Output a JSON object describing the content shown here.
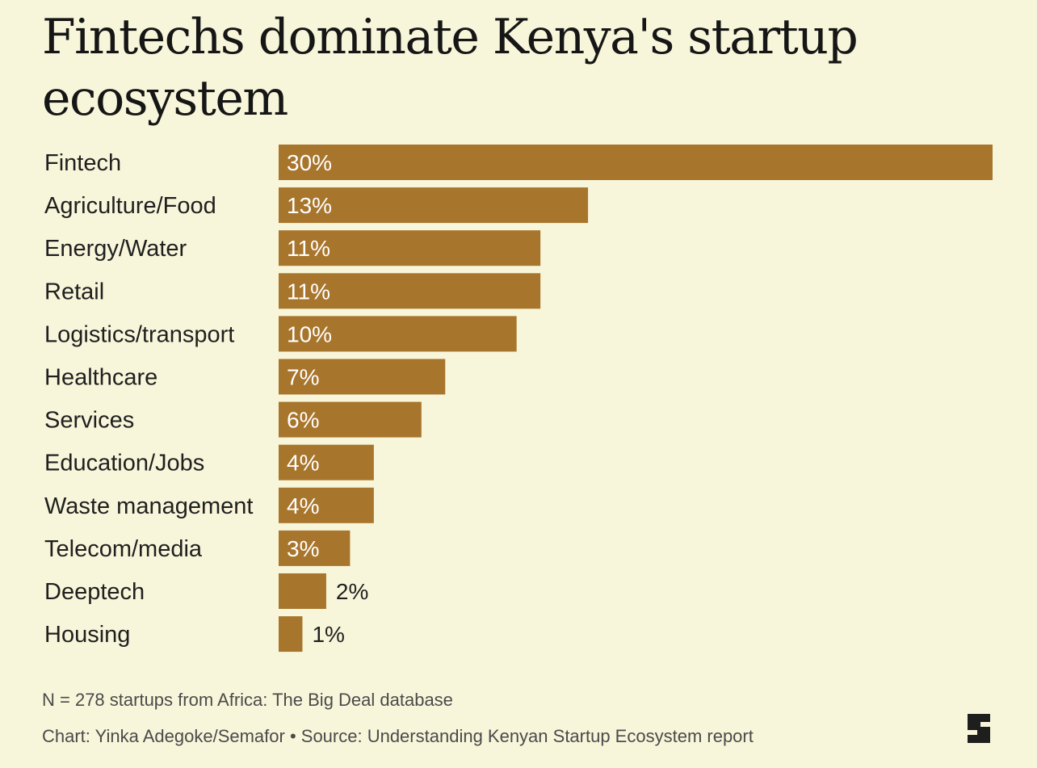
{
  "chart_data": {
    "type": "bar",
    "orientation": "horizontal",
    "title": "Fintechs dominate Kenya's startup ecosystem",
    "categories": [
      "Fintech",
      "Agriculture/Food",
      "Energy/Water",
      "Retail",
      "Logistics/transport",
      "Healthcare",
      "Services",
      "Education/Jobs",
      "Waste management",
      "Telecom/media",
      "Deeptech",
      "Housing"
    ],
    "values": [
      30,
      13,
      11,
      11,
      10,
      7,
      6,
      4,
      4,
      3,
      2,
      1
    ],
    "value_labels": [
      "30%",
      "13%",
      "11%",
      "11%",
      "10%",
      "7%",
      "6%",
      "4%",
      "4%",
      "3%",
      "2%",
      "1%"
    ],
    "unit": "%",
    "xlim": [
      0,
      30
    ],
    "xlabel": "",
    "ylabel": "",
    "grid": false,
    "bar_color": "#a8752c",
    "label_inside_color": "#ffffff",
    "label_outside_color": "#1f1f1f"
  },
  "footer": {
    "note": "N = 278 startups from Africa: The Big Deal database",
    "credit": "Chart: Yinka Adegoke/Semafor • Source: Understanding Kenyan Startup Ecosystem report"
  },
  "colors": {
    "background": "#f8f6da",
    "bar": "#a8752c",
    "text": "#1e1e1e",
    "muted_text": "#4a4a4a"
  },
  "logo": {
    "name": "semafor-logo",
    "text": "S"
  }
}
